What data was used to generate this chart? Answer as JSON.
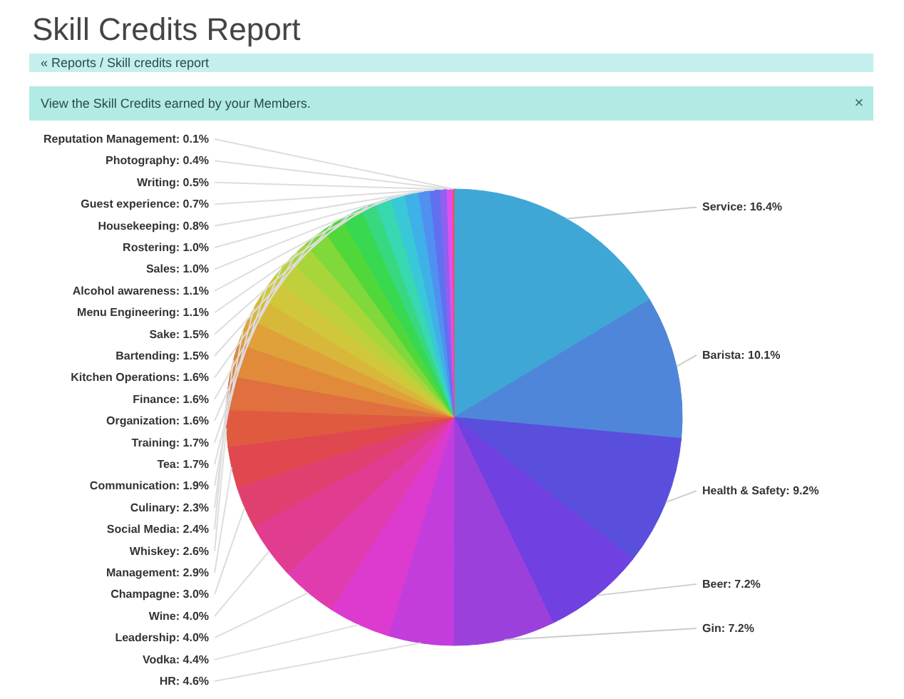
{
  "chart_data": {
    "type": "pie",
    "title": "Skill Credits Report",
    "annotations": [
      "« Reports / Skill credits report",
      "View the Skill Credits earned by your Members.",
      "×"
    ],
    "categories": [
      "Service",
      "Barista",
      "Health & Safety",
      "Beer",
      "Gin",
      "HR",
      "Vodka",
      "Leadership",
      "Wine",
      "Champagne",
      "Management",
      "Whiskey",
      "Social Media",
      "Culinary",
      "Communication",
      "Tea",
      "Training",
      "Organization",
      "Finance",
      "Kitchen Operations",
      "Bartending",
      "Sake",
      "Menu Engineering",
      "Alcohol awareness",
      "Sales",
      "Rostering",
      "Housekeeping",
      "Guest experience",
      "Writing",
      "Photography",
      "Reputation Management"
    ],
    "values": [
      16.4,
      10.1,
      9.2,
      7.2,
      7.2,
      4.6,
      4.4,
      4.0,
      4.0,
      3.0,
      2.9,
      2.6,
      2.4,
      2.3,
      1.9,
      1.7,
      1.7,
      1.6,
      1.6,
      1.6,
      1.5,
      1.5,
      1.1,
      1.1,
      1.0,
      1.0,
      0.8,
      0.7,
      0.5,
      0.4,
      0.1
    ],
    "value_labels": [
      "16.4%",
      "10.1%",
      "9.2%",
      "7.2%",
      "7.2%",
      "4.6%",
      "4.4%",
      "4.0%",
      "4.0%",
      "3.0%",
      "2.9%",
      "2.6%",
      "2.4%",
      "2.3%",
      "1.9%",
      "1.7%",
      "1.7%",
      "1.6%",
      "1.6%",
      "1.6%",
      "1.5%",
      "1.5%",
      "1.1%",
      "1.1%",
      "1.0%",
      "1.0%",
      "0.8%",
      "0.7%",
      "0.5%",
      "0.4%",
      "0.1%"
    ],
    "colors": [
      "#3fa7d6",
      "#4f86d9",
      "#5a4fdc",
      "#7040e0",
      "#9c40dc",
      "#c23ddc",
      "#dd3ad0",
      "#e03cb0",
      "#e03c90",
      "#e04070",
      "#e04850",
      "#e05a40",
      "#e07040",
      "#e08a3a",
      "#e0a03a",
      "#d8b83a",
      "#d0c83a",
      "#c0d03a",
      "#a8d63a",
      "#80d83a",
      "#50d83a",
      "#38d850",
      "#38d880",
      "#38d8b0",
      "#38c8d8",
      "#40b0e8",
      "#5090f0",
      "#6070f0",
      "#9060f0",
      "#e050f0",
      "#f05060"
    ]
  }
}
